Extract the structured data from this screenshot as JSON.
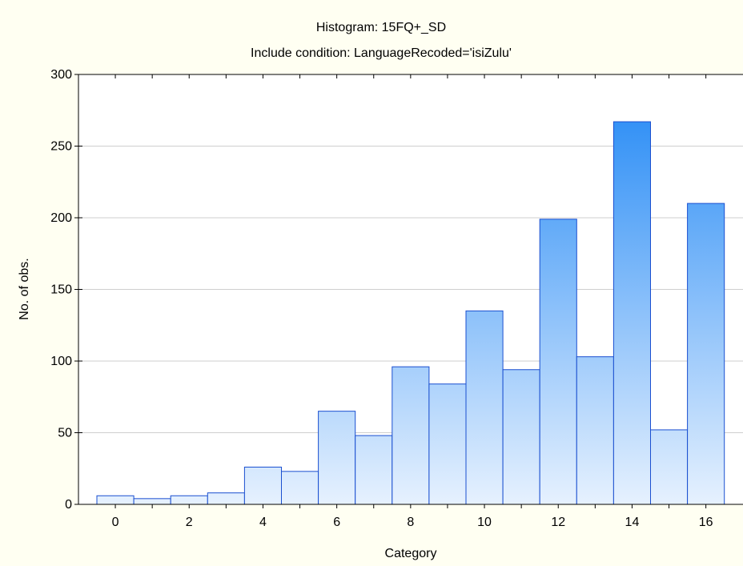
{
  "chart_data": {
    "type": "bar",
    "title": "Histogram: 15FQ+_SD",
    "subtitle": "Include condition: LanguageRecoded='isiZulu'",
    "xlabel": "Category",
    "ylabel": "No. of obs.",
    "categories": [
      "0",
      "1",
      "2",
      "3",
      "4",
      "5",
      "6",
      "7",
      "8",
      "9",
      "10",
      "11",
      "12",
      "13",
      "14",
      "15",
      "16"
    ],
    "values": [
      6,
      4,
      6,
      8,
      26,
      23,
      65,
      48,
      96,
      84,
      135,
      94,
      199,
      103,
      267,
      52,
      210
    ],
    "x_tick_labels": [
      "0",
      "2",
      "4",
      "6",
      "8",
      "10",
      "12",
      "14",
      "16"
    ],
    "y_tick_labels": [
      "0",
      "50",
      "100",
      "150",
      "200",
      "250",
      "300"
    ],
    "ylim": [
      0,
      300
    ],
    "grid": true,
    "legend": "none",
    "colors": {
      "background": "#fffff2",
      "plot_background": "#ffffff",
      "bar_top": "#1e86f5",
      "bar_bottom": "#e6f1fe",
      "bar_edge": "#1a4fd0",
      "grid": "#cfcfcf",
      "axis": "#000000"
    }
  }
}
